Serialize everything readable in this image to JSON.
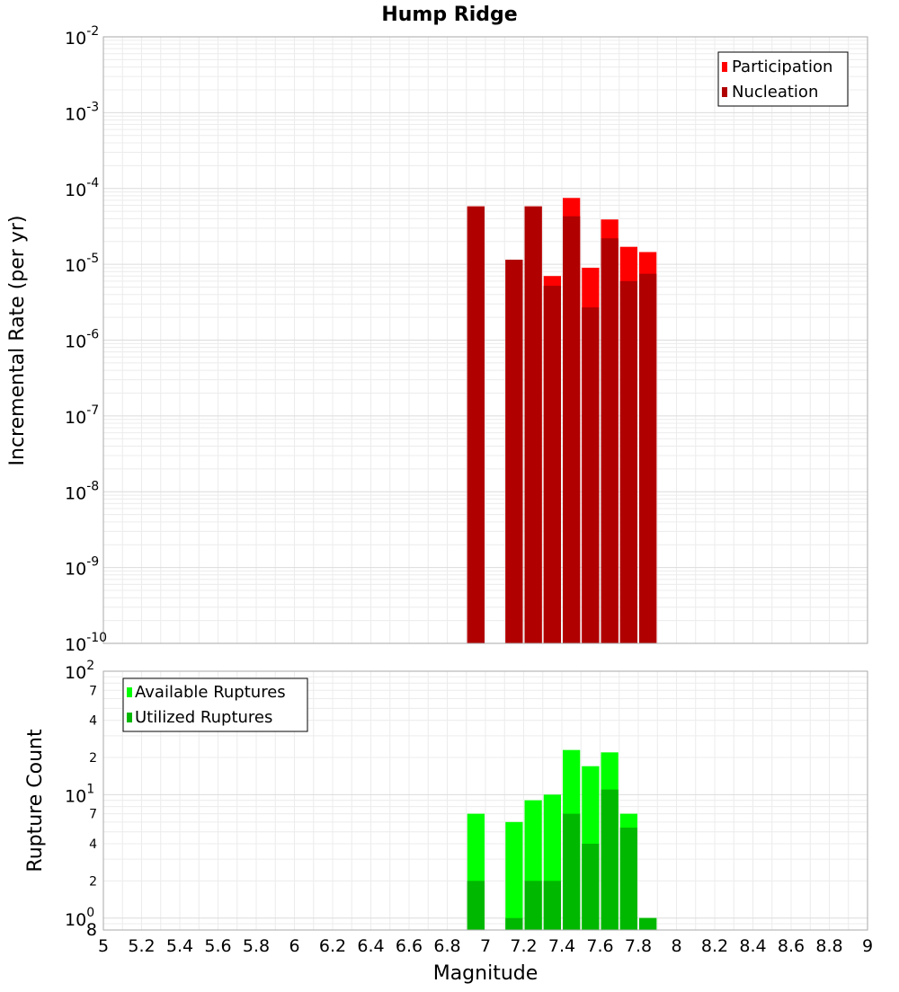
{
  "chart_data": [
    {
      "type": "bar",
      "title": "Hump Ridge",
      "ylabel": "Incremental Rate (per yr)",
      "xlabel": "",
      "xlim": [
        5,
        9
      ],
      "ylim": [
        1e-10,
        0.01
      ],
      "yscale": "log",
      "bar_width": 0.1,
      "grid": true,
      "legend_position": "top-right",
      "y_tick_labels": [
        {
          "value": 0.01,
          "base": "10",
          "exp": "-2"
        },
        {
          "value": 0.001,
          "base": "10",
          "exp": "-3"
        },
        {
          "value": 0.0001,
          "base": "10",
          "exp": "-4"
        },
        {
          "value": 1e-05,
          "base": "10",
          "exp": "-5"
        },
        {
          "value": 1e-06,
          "base": "10",
          "exp": "-6"
        },
        {
          "value": 1e-07,
          "base": "10",
          "exp": "-7"
        },
        {
          "value": 1e-08,
          "base": "10",
          "exp": "-8"
        },
        {
          "value": 1e-09,
          "base": "10",
          "exp": "-9"
        },
        {
          "value": 1e-10,
          "base": "10",
          "exp": "-10"
        }
      ],
      "series": [
        {
          "name": "Participation",
          "color": "#ff0000",
          "points": [
            [
              6.95,
              5.8e-05
            ],
            [
              7.15,
              1.15e-05
            ],
            [
              7.25,
              5.8e-05
            ],
            [
              7.35,
              7e-06
            ],
            [
              7.45,
              7.5e-05
            ],
            [
              7.55,
              9e-06
            ],
            [
              7.65,
              3.9e-05
            ],
            [
              7.75,
              1.7e-05
            ],
            [
              7.85,
              1.45e-05
            ]
          ]
        },
        {
          "name": "Nucleation",
          "color": "#b00000",
          "points": [
            [
              6.95,
              5.8e-05
            ],
            [
              7.15,
              1.15e-05
            ],
            [
              7.25,
              5.8e-05
            ],
            [
              7.35,
              5.2e-06
            ],
            [
              7.45,
              4.3e-05
            ],
            [
              7.55,
              2.7e-06
            ],
            [
              7.65,
              2.2e-05
            ],
            [
              7.75,
              6e-06
            ],
            [
              7.85,
              7.5e-06
            ]
          ]
        }
      ]
    },
    {
      "type": "bar",
      "title": "",
      "ylabel": "Rupture Count",
      "xlabel": "Magnitude",
      "xlim": [
        5,
        9
      ],
      "ylim": [
        0.8,
        100
      ],
      "yscale": "log",
      "bar_width": 0.1,
      "grid": true,
      "legend_position": "top-left",
      "x_ticks": [
        "5",
        "5.2",
        "5.4",
        "5.6",
        "5.8",
        "6",
        "6.2",
        "6.4",
        "6.6",
        "6.8",
        "7",
        "7.2",
        "7.4",
        "7.6",
        "7.8",
        "8",
        "8.2",
        "8.4",
        "8.6",
        "8.8",
        "9"
      ],
      "y_tick_labels": [
        {
          "value": 100,
          "base": "10",
          "exp": "2"
        },
        {
          "value": 10,
          "base": "10",
          "exp": "1"
        },
        {
          "value": 1,
          "base": "10",
          "exp": "0"
        }
      ],
      "y_minor_labels": [
        {
          "value": 70,
          "label": "7"
        },
        {
          "value": 40,
          "label": "4"
        },
        {
          "value": 20,
          "label": "2"
        },
        {
          "value": 7,
          "label": "7"
        },
        {
          "value": 4,
          "label": "4"
        },
        {
          "value": 2,
          "label": "2"
        },
        {
          "value": 0.8,
          "label": "8"
        }
      ],
      "series": [
        {
          "name": "Available Ruptures",
          "color": "#00ff00",
          "points": [
            [
              6.95,
              7
            ],
            [
              7.15,
              6
            ],
            [
              7.25,
              9
            ],
            [
              7.35,
              10
            ],
            [
              7.45,
              23
            ],
            [
              7.55,
              17
            ],
            [
              7.65,
              22
            ],
            [
              7.75,
              7
            ],
            [
              7.85,
              1
            ]
          ]
        },
        {
          "name": "Utilized Ruptures",
          "color": "#00b800",
          "points": [
            [
              6.95,
              2
            ],
            [
              7.15,
              1
            ],
            [
              7.25,
              2
            ],
            [
              7.35,
              2
            ],
            [
              7.45,
              7
            ],
            [
              7.55,
              4
            ],
            [
              7.65,
              11
            ],
            [
              7.75,
              5.4
            ],
            [
              7.85,
              1
            ]
          ]
        }
      ]
    }
  ]
}
